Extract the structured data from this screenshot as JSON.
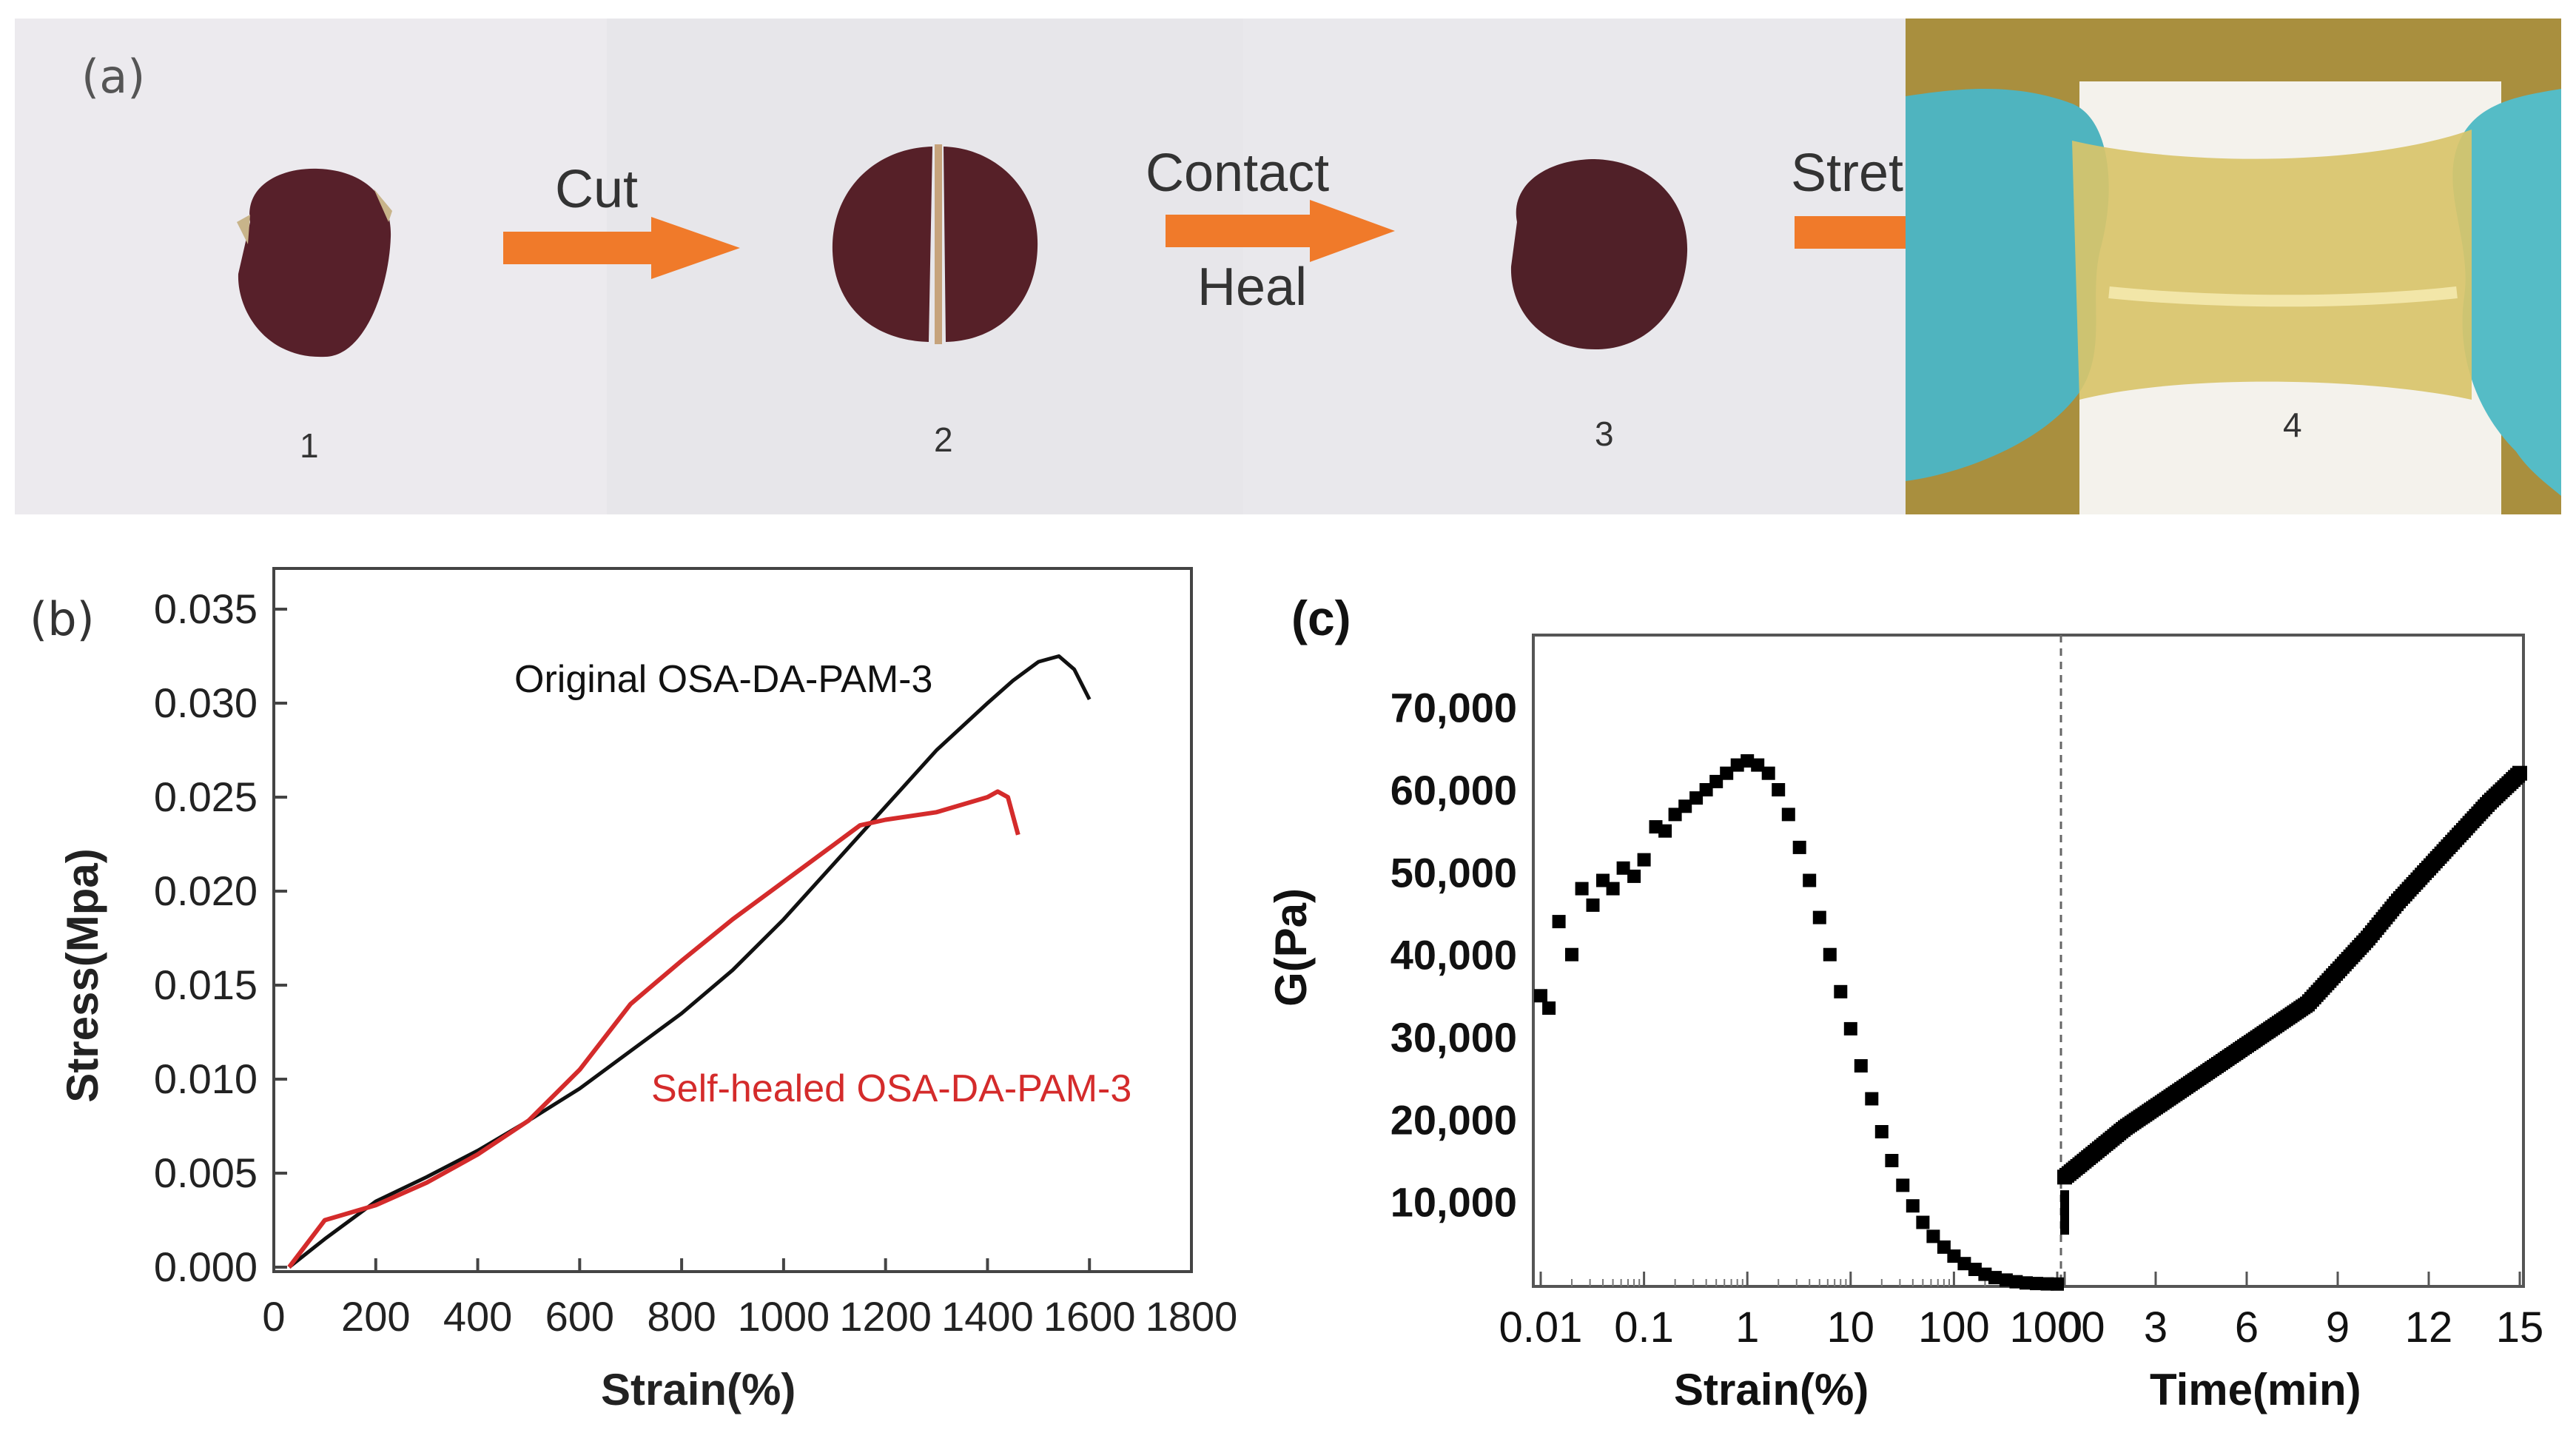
{
  "panel_a": {
    "label": "(a)",
    "steps": [
      {
        "number": "1"
      },
      {
        "number": "2"
      },
      {
        "number": "3"
      },
      {
        "number": "4"
      }
    ],
    "arrows": [
      {
        "label": "Cut",
        "label2": ""
      },
      {
        "label": "Contact",
        "label2": "Heal"
      },
      {
        "label": "Stretch",
        "label2": ""
      }
    ],
    "colors": {
      "arrow": "#f07a2a",
      "sample": "#5a1c22",
      "glove": "#4fb8c2",
      "gel": "#d9c36a"
    }
  },
  "chart_data": [
    {
      "id": "b",
      "panel_label": "(b)",
      "type": "line",
      "xlabel": "Strain(%)",
      "ylabel": "Stress(Mpa)",
      "xlim": [
        0,
        1800
      ],
      "ylim": [
        0,
        0.035
      ],
      "xticks": [
        "0",
        "200",
        "400",
        "600",
        "800",
        "1000",
        "1200",
        "1400",
        "1600",
        "1800"
      ],
      "yticks": [
        "0.000",
        "0.005",
        "0.010",
        "0.015",
        "0.020",
        "0.025",
        "0.030",
        "0.035"
      ],
      "series": [
        {
          "name": "Original OSA-DA-PAM-3",
          "color": "#111111",
          "x": [
            30,
            100,
            200,
            300,
            400,
            500,
            600,
            700,
            800,
            900,
            1000,
            1100,
            1200,
            1300,
            1400,
            1450,
            1500,
            1540,
            1570,
            1600
          ],
          "y": [
            0.0,
            0.0015,
            0.0035,
            0.0048,
            0.0062,
            0.0078,
            0.0095,
            0.0115,
            0.0135,
            0.0158,
            0.0185,
            0.0215,
            0.0245,
            0.0275,
            0.03,
            0.0312,
            0.0322,
            0.0325,
            0.0318,
            0.0302
          ]
        },
        {
          "name": "Self-healed OSA-DA-PAM-3",
          "color": "#d42b2b",
          "x": [
            30,
            100,
            200,
            300,
            400,
            500,
            600,
            700,
            800,
            900,
            1000,
            1100,
            1150,
            1200,
            1300,
            1400,
            1420,
            1440,
            1460
          ],
          "y": [
            0.0,
            0.0025,
            0.0033,
            0.0045,
            0.006,
            0.0078,
            0.0105,
            0.014,
            0.0163,
            0.0185,
            0.0205,
            0.0225,
            0.0235,
            0.0238,
            0.0242,
            0.025,
            0.0253,
            0.025,
            0.023
          ]
        }
      ]
    },
    {
      "id": "c_left",
      "panel_label": "(c)",
      "type": "scatter",
      "xscale": "log",
      "xlabel": "Strain(%)",
      "ylabel": "G(Pa)",
      "xlim": [
        0.01,
        1000
      ],
      "ylim": [
        0,
        75000
      ],
      "xticks": [
        "0.01",
        "0.1",
        "1",
        "10",
        "100",
        "1000"
      ],
      "yticks": [
        "10,000",
        "20,000",
        "30,000",
        "40,000",
        "50,000",
        "60,000",
        "70,000"
      ],
      "series": [
        {
          "name": "G",
          "color": "#000000",
          "x": [
            0.01,
            0.012,
            0.015,
            0.02,
            0.025,
            0.032,
            0.04,
            0.05,
            0.063,
            0.08,
            0.1,
            0.13,
            0.16,
            0.2,
            0.25,
            0.32,
            0.4,
            0.5,
            0.63,
            0.8,
            1.0,
            1.26,
            1.6,
            2.0,
            2.5,
            3.2,
            4.0,
            5.0,
            6.3,
            8.0,
            10,
            12.6,
            16,
            20,
            25,
            32,
            40,
            50,
            63,
            80,
            100,
            126,
            160,
            200,
            250,
            320,
            400,
            500,
            630,
            800,
            1000
          ],
          "y": [
            35000,
            33500,
            44000,
            40000,
            48000,
            46000,
            49000,
            48000,
            50500,
            49500,
            51500,
            55500,
            55000,
            57000,
            58000,
            59000,
            60000,
            61000,
            62000,
            63000,
            63500,
            63000,
            62000,
            60000,
            57000,
            53000,
            49000,
            44500,
            40000,
            35500,
            31000,
            26500,
            22500,
            18500,
            15000,
            12000,
            9500,
            7500,
            5800,
            4500,
            3400,
            2500,
            1800,
            1200,
            800,
            500,
            300,
            150,
            80,
            40,
            20
          ]
        }
      ]
    },
    {
      "id": "c_right",
      "type": "scatter",
      "xlabel": "Time(min)",
      "xlim": [
        0,
        15
      ],
      "ylim": [
        0,
        75000
      ],
      "xticks": [
        "0",
        "3",
        "6",
        "9",
        "12",
        "15"
      ],
      "series": [
        {
          "name": "G",
          "color": "#000000",
          "x": [
            0,
            1,
            2,
            3,
            4,
            5,
            6,
            7,
            8,
            9,
            10,
            11,
            12,
            13,
            14,
            15
          ],
          "y": [
            13000,
            16000,
            19000,
            21500,
            24000,
            26500,
            29000,
            31500,
            34000,
            38000,
            42000,
            46500,
            50500,
            54500,
            58500,
            62000
          ]
        }
      ]
    }
  ]
}
